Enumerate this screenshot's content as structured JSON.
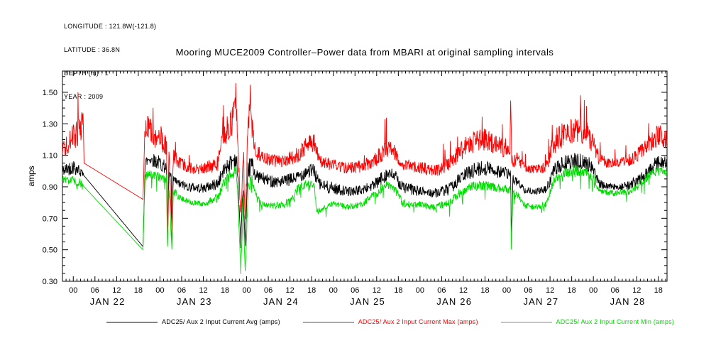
{
  "meta": {
    "lines": [
      "LONGITUDE : 121.8W(-121.8)",
      "LATITUDE : 36.8N",
      "DEPTH (m) : 1",
      "YEAR : 2009"
    ]
  },
  "chart_data": {
    "type": "line",
    "title": "Mooring MUCE2009 Controller–Power data from MBARI at original sampling intervals",
    "ylabel": "amps",
    "ylim": [
      0.3,
      1.635
    ],
    "yticks": [
      0.3,
      0.5,
      0.7,
      0.9,
      1.1,
      1.3,
      1.5
    ],
    "y_minor_step": 0.05,
    "x_range_hours": [
      -3,
      164.4
    ],
    "x_major_step_hours": 6,
    "x_minor_step_hours": 1,
    "hour_tick_labels": [
      "00",
      "06",
      "12",
      "18"
    ],
    "days": [
      "JAN 22",
      "JAN 23",
      "JAN 24",
      "JAN 25",
      "JAN 26",
      "JAN 27",
      "JAN 28"
    ],
    "grid": false,
    "legend_position": "bottom",
    "series": [
      {
        "key": "avg",
        "name": "ADC25/ Aux 2 Input Current Avg (amps)",
        "color": "#000000",
        "spike_dir": 0,
        "keypoints": [
          [
            -3,
            1.0,
            0.04
          ],
          [
            0,
            1.03,
            0.05
          ],
          [
            2,
            1.0,
            0.04
          ],
          [
            3,
            0.97,
            0
          ],
          [
            19.3,
            0.52,
            0
          ],
          [
            19.9,
            1.05,
            0.04
          ],
          [
            21,
            1.08,
            0.04
          ],
          [
            24,
            1.05,
            0.05
          ],
          [
            25.8,
            1.02,
            0.04
          ],
          [
            26.1,
            0.55,
            0.02
          ],
          [
            26.5,
            0.98,
            0.03
          ],
          [
            27.1,
            0.97,
            0.03
          ],
          [
            27.3,
            0.56,
            0.02
          ],
          [
            27.7,
            0.95,
            0.03
          ],
          [
            29,
            0.92,
            0.03
          ],
          [
            32,
            0.9,
            0.03
          ],
          [
            36,
            0.89,
            0.03
          ],
          [
            40,
            0.92,
            0.04
          ],
          [
            42,
            1.02,
            0.05
          ],
          [
            44.7,
            1.08,
            0.06
          ],
          [
            45.3,
            1.05,
            0.05
          ],
          [
            46.4,
            0.55,
            0.05
          ],
          [
            47,
            0.9,
            0.05
          ],
          [
            47.6,
            0.52,
            0.04
          ],
          [
            48.4,
            1.0,
            0.06
          ],
          [
            49.4,
            1.05,
            0.06
          ],
          [
            50.5,
            0.97,
            0.04
          ],
          [
            54,
            0.94,
            0.04
          ],
          [
            58,
            0.93,
            0.04
          ],
          [
            62,
            0.96,
            0.04
          ],
          [
            64.5,
            1.0,
            0.05
          ],
          [
            66.7,
            1.0,
            0.05
          ],
          [
            68,
            0.92,
            0.04
          ],
          [
            70,
            0.9,
            0.04
          ],
          [
            72,
            0.89,
            0.04
          ],
          [
            76,
            0.87,
            0.03
          ],
          [
            80,
            0.88,
            0.03
          ],
          [
            84,
            0.92,
            0.04
          ],
          [
            86.5,
            0.98,
            0.05
          ],
          [
            89,
            0.97,
            0.04
          ],
          [
            91,
            0.9,
            0.04
          ],
          [
            94,
            0.88,
            0.04
          ],
          [
            96,
            0.87,
            0.03
          ],
          [
            100,
            0.86,
            0.03
          ],
          [
            104,
            0.88,
            0.04
          ],
          [
            107,
            0.95,
            0.04
          ],
          [
            110,
            1.0,
            0.05
          ],
          [
            114,
            1.02,
            0.05
          ],
          [
            118,
            1.0,
            0.05
          ],
          [
            120.5,
            0.98,
            0.04
          ],
          [
            121.1,
            0.98,
            0.03
          ],
          [
            121.3,
            0.55,
            0.02
          ],
          [
            121.7,
            0.95,
            0.03
          ],
          [
            123,
            0.93,
            0.03
          ],
          [
            125,
            0.88,
            0.02
          ],
          [
            128,
            0.87,
            0.02
          ],
          [
            131,
            0.88,
            0.03
          ],
          [
            133,
            1.0,
            0.05
          ],
          [
            136,
            1.05,
            0.05
          ],
          [
            139,
            1.06,
            0.06
          ],
          [
            142,
            1.05,
            0.05
          ],
          [
            144,
            1.02,
            0.05
          ],
          [
            145.5,
            0.92,
            0.03
          ],
          [
            148,
            0.9,
            0.02
          ],
          [
            151,
            0.9,
            0.02
          ],
          [
            154,
            0.91,
            0.03
          ],
          [
            157,
            0.95,
            0.04
          ],
          [
            160,
            1.02,
            0.05
          ],
          [
            162,
            1.05,
            0.05
          ],
          [
            164.4,
            1.05,
            0.05
          ]
        ]
      },
      {
        "key": "max",
        "name": "ADC25/ Aux 2 Input Current Max (amps)",
        "color": "#ff0000",
        "spike_dir": 1,
        "keypoints": [
          [
            -3,
            1.13,
            0.05
          ],
          [
            0,
            1.22,
            0.08
          ],
          [
            2,
            1.25,
            0.1
          ],
          [
            2.7,
            1.38,
            0.04
          ],
          [
            3,
            1.05,
            0
          ],
          [
            19.3,
            0.82,
            0
          ],
          [
            19.9,
            1.28,
            0.07
          ],
          [
            21,
            1.28,
            0.08
          ],
          [
            22.5,
            1.2,
            0.06
          ],
          [
            24,
            1.22,
            0.08
          ],
          [
            25.8,
            1.15,
            0.06
          ],
          [
            26.1,
            0.62,
            0.03
          ],
          [
            26.5,
            1.12,
            0.05
          ],
          [
            27.3,
            0.63,
            0.03
          ],
          [
            27.7,
            1.1,
            0.05
          ],
          [
            29,
            1.06,
            0.04
          ],
          [
            32,
            1.02,
            0.04
          ],
          [
            36,
            1.01,
            0.04
          ],
          [
            40,
            1.05,
            0.05
          ],
          [
            42,
            1.25,
            0.09
          ],
          [
            44,
            1.3,
            0.1
          ],
          [
            44.7,
            1.5,
            0.06
          ],
          [
            45.3,
            1.28,
            0.08
          ],
          [
            46.4,
            0.7,
            0.06
          ],
          [
            47,
            1.1,
            0.06
          ],
          [
            47.6,
            0.65,
            0.05
          ],
          [
            48.4,
            1.3,
            0.1
          ],
          [
            49,
            1.48,
            0.07
          ],
          [
            49.6,
            1.25,
            0.08
          ],
          [
            50.5,
            1.12,
            0.05
          ],
          [
            54,
            1.07,
            0.04
          ],
          [
            58,
            1.06,
            0.04
          ],
          [
            62,
            1.1,
            0.05
          ],
          [
            64.5,
            1.16,
            0.06
          ],
          [
            66.7,
            1.18,
            0.06
          ],
          [
            68,
            1.08,
            0.05
          ],
          [
            70,
            1.05,
            0.04
          ],
          [
            72,
            1.04,
            0.04
          ],
          [
            76,
            1.02,
            0.04
          ],
          [
            80,
            1.03,
            0.04
          ],
          [
            84,
            1.08,
            0.05
          ],
          [
            86.5,
            1.14,
            0.06
          ],
          [
            89,
            1.12,
            0.05
          ],
          [
            91,
            1.05,
            0.04
          ],
          [
            94,
            1.03,
            0.04
          ],
          [
            96,
            1.02,
            0.04
          ],
          [
            100,
            1.0,
            0.04
          ],
          [
            104,
            1.04,
            0.05
          ],
          [
            107,
            1.12,
            0.06
          ],
          [
            110,
            1.18,
            0.07
          ],
          [
            114,
            1.2,
            0.07
          ],
          [
            118,
            1.16,
            0.06
          ],
          [
            120.4,
            1.12,
            0.05
          ],
          [
            120.9,
            1.12,
            0.04
          ],
          [
            121.1,
            1.48,
            0.04
          ],
          [
            121.4,
            1.05,
            0.05
          ],
          [
            123,
            1.08,
            0.04
          ],
          [
            125,
            1.02,
            0.03
          ],
          [
            128,
            1.01,
            0.03
          ],
          [
            131,
            1.03,
            0.04
          ],
          [
            133,
            1.18,
            0.08
          ],
          [
            136,
            1.25,
            0.09
          ],
          [
            139,
            1.27,
            0.09
          ],
          [
            142,
            1.24,
            0.08
          ],
          [
            144,
            1.18,
            0.07
          ],
          [
            145.5,
            1.08,
            0.04
          ],
          [
            148,
            1.05,
            0.03
          ],
          [
            151,
            1.05,
            0.03
          ],
          [
            154,
            1.07,
            0.04
          ],
          [
            157,
            1.12,
            0.05
          ],
          [
            160,
            1.18,
            0.06
          ],
          [
            162,
            1.23,
            0.07
          ],
          [
            164.4,
            1.2,
            0.06
          ]
        ]
      },
      {
        "key": "min",
        "name": "ADC25/ Aux 2 Input Current Min (amps)",
        "color": "#00dd00",
        "spike_dir": -1,
        "keypoints": [
          [
            -3,
            0.95,
            0.03
          ],
          [
            0,
            0.94,
            0.03
          ],
          [
            2,
            0.92,
            0.03
          ],
          [
            3,
            0.9,
            0
          ],
          [
            19.3,
            0.5,
            0
          ],
          [
            19.9,
            0.97,
            0.03
          ],
          [
            21,
            0.98,
            0.03
          ],
          [
            24,
            0.96,
            0.03
          ],
          [
            25.8,
            0.95,
            0.03
          ],
          [
            26.1,
            0.5,
            0.02
          ],
          [
            26.5,
            0.9,
            0.03
          ],
          [
            27.3,
            0.5,
            0.02
          ],
          [
            27.7,
            0.88,
            0.03
          ],
          [
            29,
            0.84,
            0.02
          ],
          [
            32,
            0.8,
            0.02
          ],
          [
            36,
            0.79,
            0.02
          ],
          [
            40,
            0.83,
            0.03
          ],
          [
            42,
            0.95,
            0.04
          ],
          [
            44,
            0.98,
            0.04
          ],
          [
            44.7,
            1.0,
            0.04
          ],
          [
            45.3,
            0.97,
            0.04
          ],
          [
            46.4,
            0.38,
            0.04
          ],
          [
            47,
            0.8,
            0.06
          ],
          [
            47.6,
            0.34,
            0.03
          ],
          [
            48.4,
            0.9,
            0.05
          ],
          [
            49.4,
            0.95,
            0.04
          ],
          [
            50.5,
            0.84,
            0.03
          ],
          [
            52,
            0.79,
            0.02
          ],
          [
            56,
            0.78,
            0.02
          ],
          [
            60,
            0.8,
            0.03
          ],
          [
            62.5,
            0.9,
            0.03
          ],
          [
            64.5,
            0.92,
            0.03
          ],
          [
            66.7,
            0.9,
            0.03
          ],
          [
            67.5,
            0.74,
            0.02
          ],
          [
            70,
            0.77,
            0.02
          ],
          [
            72,
            0.79,
            0.02
          ],
          [
            76,
            0.77,
            0.02
          ],
          [
            80,
            0.79,
            0.02
          ],
          [
            84,
            0.86,
            0.03
          ],
          [
            86.5,
            0.91,
            0.03
          ],
          [
            89,
            0.89,
            0.03
          ],
          [
            91,
            0.8,
            0.03
          ],
          [
            94,
            0.78,
            0.02
          ],
          [
            96,
            0.79,
            0.02
          ],
          [
            100,
            0.77,
            0.02
          ],
          [
            104,
            0.8,
            0.03
          ],
          [
            107,
            0.86,
            0.03
          ],
          [
            110,
            0.9,
            0.03
          ],
          [
            114,
            0.91,
            0.03
          ],
          [
            118,
            0.89,
            0.03
          ],
          [
            120.5,
            0.88,
            0.03
          ],
          [
            121.1,
            0.88,
            0.02
          ],
          [
            121.3,
            0.5,
            0.02
          ],
          [
            121.7,
            0.86,
            0.02
          ],
          [
            123,
            0.85,
            0.02
          ],
          [
            125,
            0.78,
            0.02
          ],
          [
            128,
            0.77,
            0.02
          ],
          [
            131,
            0.79,
            0.02
          ],
          [
            133,
            0.94,
            0.03
          ],
          [
            136,
            0.99,
            0.03
          ],
          [
            139,
            1.0,
            0.04
          ],
          [
            142,
            0.99,
            0.03
          ],
          [
            144,
            0.96,
            0.03
          ],
          [
            145.5,
            0.88,
            0.02
          ],
          [
            148,
            0.86,
            0.02
          ],
          [
            151,
            0.86,
            0.02
          ],
          [
            154,
            0.87,
            0.02
          ],
          [
            157,
            0.92,
            0.03
          ],
          [
            160,
            0.98,
            0.03
          ],
          [
            162,
            1.0,
            0.03
          ],
          [
            164.4,
            0.99,
            0.03
          ]
        ]
      }
    ]
  }
}
